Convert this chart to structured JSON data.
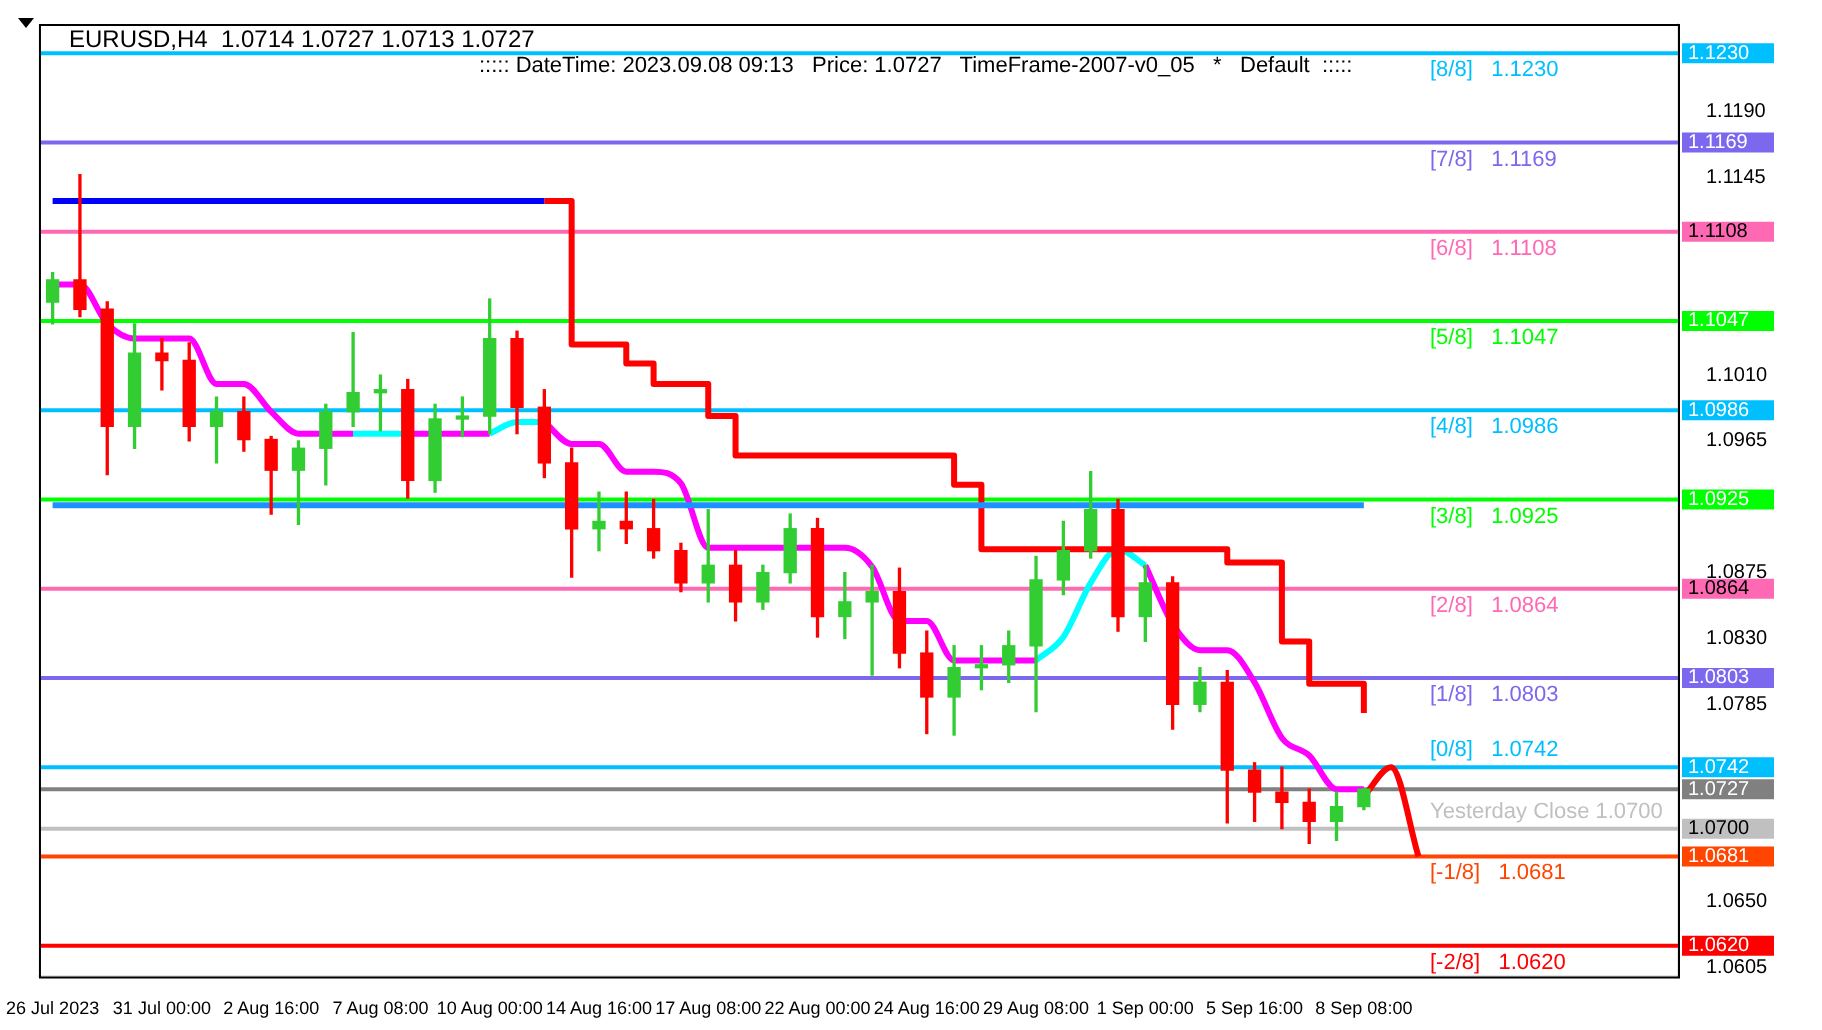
{
  "chart_data": {
    "type": "candlestick",
    "title": "EURUSD,H4  1.0714 1.0727 1.0713 1.0727",
    "subtitle": "::::: DateTime: 2023.09.08 09:13   Price: 1.0727   TimeFrame-2007-v0_05   *   Default  :::::",
    "categories": [
      "26 Jul 2023",
      null,
      null,
      null,
      "31 Jul 00:00",
      null,
      null,
      null,
      "2 Aug 16:00",
      null,
      null,
      null,
      "7 Aug 08:00",
      null,
      null,
      null,
      "10 Aug 00:00",
      null,
      null,
      null,
      "14 Aug 16:00",
      null,
      null,
      null,
      "17 Aug 08:00",
      null,
      null,
      null,
      "22 Aug 00:00",
      null,
      null,
      null,
      "24 Aug 16:00",
      null,
      null,
      null,
      "29 Aug 08:00",
      null,
      null,
      null,
      "1 Sep 00:00",
      null,
      null,
      null,
      "5 Sep 16:00",
      null,
      null,
      null,
      "8 Sep 08:00",
      null,
      null,
      null,
      null,
      null,
      null,
      null,
      null,
      null,
      null,
      null
    ],
    "ohlc": [
      [
        1.106,
        1.108,
        1.1045,
        1.1075
      ],
      [
        1.1075,
        1.1147,
        1.105,
        1.1055
      ],
      [
        1.1055,
        1.106,
        1.0942,
        1.0975
      ],
      [
        1.0975,
        1.1045,
        1.096,
        1.1025
      ],
      [
        1.1025,
        1.1035,
        1.1,
        1.102
      ],
      [
        1.102,
        1.1032,
        1.0965,
        1.0975
      ],
      [
        1.0975,
        1.0995,
        1.095,
        1.0985
      ],
      [
        1.0985,
        1.0995,
        1.0958,
        1.0966
      ],
      [
        1.0966,
        1.0968,
        1.0915,
        1.0945
      ],
      [
        1.0945,
        1.0965,
        1.0908,
        1.096
      ],
      [
        1.096,
        1.099,
        1.0935,
        1.0985
      ],
      [
        1.0985,
        1.1039,
        1.0975,
        1.0998
      ],
      [
        1.0998,
        1.101,
        1.0972,
        1.1
      ],
      [
        1.1,
        1.1007,
        1.0926,
        1.0938
      ],
      [
        1.0938,
        1.099,
        1.093,
        1.098
      ],
      [
        1.098,
        1.0995,
        1.0968,
        1.0982
      ],
      [
        1.0982,
        1.1062,
        1.097,
        1.1035
      ],
      [
        1.1035,
        1.104,
        1.097,
        1.0988
      ],
      [
        1.0988,
        1.1,
        1.094,
        1.095
      ],
      [
        1.095,
        1.096,
        1.0872,
        1.0905
      ],
      [
        1.0905,
        1.093,
        1.089,
        1.091
      ],
      [
        1.091,
        1.093,
        1.0895,
        1.0905
      ],
      [
        1.0905,
        1.0925,
        1.0885,
        1.089
      ],
      [
        1.089,
        1.0895,
        1.0862,
        1.0868
      ],
      [
        1.0868,
        1.0918,
        1.0855,
        1.088
      ],
      [
        1.088,
        1.089,
        1.0842,
        1.0855
      ],
      [
        1.0855,
        1.088,
        1.085,
        1.0875
      ],
      [
        1.0875,
        1.0915,
        1.0868,
        1.0905
      ],
      [
        1.0905,
        1.0912,
        1.0831,
        1.0845
      ],
      [
        1.0845,
        1.0875,
        1.083,
        1.0855
      ],
      [
        1.0855,
        1.088,
        1.0805,
        1.0862
      ],
      [
        1.0862,
        1.0878,
        1.081,
        1.082
      ],
      [
        1.082,
        1.0835,
        1.0765,
        1.079
      ],
      [
        1.079,
        1.0825,
        1.0764,
        1.081
      ],
      [
        1.081,
        1.0825,
        1.0795,
        1.0812
      ],
      [
        1.0812,
        1.0835,
        1.08,
        1.0825
      ],
      [
        1.0825,
        1.0886,
        1.078,
        1.087
      ],
      [
        1.087,
        1.091,
        1.086,
        1.089
      ],
      [
        1.089,
        1.0944,
        1.0885,
        1.0918
      ],
      [
        1.0918,
        1.0925,
        1.0835,
        1.0845
      ],
      [
        1.0845,
        1.088,
        1.0828,
        1.0868
      ],
      [
        1.0868,
        1.0872,
        1.0768,
        1.0785
      ],
      [
        1.0785,
        1.081,
        1.078,
        1.08
      ],
      [
        1.08,
        1.0808,
        1.0704,
        1.074
      ],
      [
        1.074,
        1.0745,
        1.0705,
        1.0725
      ],
      [
        1.0725,
        1.0742,
        1.07,
        1.0718
      ],
      [
        1.0718,
        1.0727,
        1.069,
        1.0705
      ],
      [
        1.0705,
        1.0725,
        1.0692,
        1.0715
      ],
      [
        1.0715,
        1.0727,
        1.0713,
        1.0727
      ],
      null,
      null,
      null,
      null,
      null,
      null,
      null,
      null,
      null,
      null,
      null
    ],
    "colors": [
      "#32cd32",
      "#ff0000",
      "#ff0000",
      "#32cd32",
      "#ff0000",
      "#ff0000",
      "#32cd32",
      "#ff0000",
      "#ff0000",
      "#32cd32",
      "#32cd32",
      "#32cd32",
      "#32cd32",
      "#ff0000",
      "#32cd32",
      "#32cd32",
      "#32cd32",
      "#ff0000",
      "#ff0000",
      "#ff0000",
      "#32cd32",
      "#ff0000",
      "#ff0000",
      "#ff0000",
      "#32cd32",
      "#ff0000",
      "#32cd32",
      "#32cd32",
      "#ff0000",
      "#32cd32",
      "#32cd32",
      "#ff0000",
      "#ff0000",
      "#32cd32",
      "#32cd32",
      "#32cd32",
      "#32cd32",
      "#32cd32",
      "#32cd32",
      "#ff0000",
      "#32cd32",
      "#ff0000",
      "#32cd32",
      "#ff0000",
      "#ff0000",
      "#ff0000",
      "#ff0000",
      "#32cd32",
      "#32cd32",
      null,
      null,
      null,
      null,
      null,
      null,
      null,
      null,
      null,
      null,
      null
    ],
    "series": [
      {
        "type": "line",
        "color": "#0000ff",
        "values": [
          1.1129,
          1.1129,
          1.1129,
          1.1129,
          1.1129,
          1.1129,
          1.1129,
          1.1129,
          1.1129,
          1.1129,
          1.1129,
          1.1129,
          1.1129,
          1.1129,
          1.1129,
          1.1129,
          1.1129,
          1.1129,
          1.1129,
          null,
          null,
          null,
          null,
          null,
          null,
          null,
          null,
          null,
          null,
          null,
          null,
          null,
          null,
          null,
          null,
          null,
          null,
          null,
          null,
          null,
          null,
          null,
          null,
          null,
          null,
          null,
          null,
          null,
          null,
          null,
          null,
          null,
          null,
          null,
          null,
          null,
          null,
          null,
          null,
          null
        ]
      },
      {
        "type": "line",
        "color": "#1e90ff",
        "values": [
          1.0921,
          1.0921,
          1.0921,
          1.0921,
          1.0921,
          1.0921,
          1.0921,
          1.0921,
          1.0921,
          1.0921,
          1.0921,
          1.0921,
          1.0921,
          1.0921,
          1.0921,
          1.0921,
          1.0921,
          1.0921,
          1.0921,
          1.0921,
          1.0921,
          1.0921,
          1.0921,
          1.0921,
          1.0921,
          1.0921,
          1.0921,
          1.0921,
          1.0921,
          1.0921,
          1.0921,
          1.0921,
          1.0921,
          1.0921,
          1.0921,
          1.0921,
          1.0921,
          1.0921,
          1.0921,
          1.0921,
          1.0921,
          1.0921,
          1.0921,
          1.0921,
          1.0921,
          1.0921,
          1.0921,
          1.0921,
          1.0921,
          null,
          null,
          null,
          null,
          null,
          null,
          null,
          null,
          null,
          null,
          null
        ]
      },
      {
        "type": "step",
        "color": "#ff0000",
        "values": [
          null,
          null,
          null,
          null,
          null,
          null,
          null,
          null,
          null,
          null,
          null,
          null,
          null,
          null,
          null,
          null,
          null,
          null,
          1.1129,
          1.1031,
          1.1031,
          1.1018,
          1.1004,
          1.1004,
          1.0982,
          1.0955,
          1.0955,
          1.0955,
          1.0955,
          1.0955,
          1.0955,
          1.0955,
          1.0955,
          1.0935,
          1.0891,
          1.0891,
          1.0891,
          1.0891,
          1.0891,
          1.0891,
          1.0891,
          1.0891,
          1.0891,
          1.0882,
          1.0882,
          1.0828,
          1.0799,
          1.0799,
          1.0779,
          null,
          null,
          null,
          null,
          null,
          null,
          null,
          null,
          null,
          null,
          null
        ]
      },
      {
        "type": "line",
        "color": "#ff00ff",
        "values": [
          1.1072,
          1.1072,
          1.1045,
          1.1035,
          1.1035,
          1.1035,
          1.1004,
          1.1004,
          1.0985,
          1.097,
          1.097,
          1.097,
          null,
          1.097,
          1.097,
          1.097,
          1.097,
          null,
          1.0978,
          1.0963,
          1.0963,
          1.0944,
          1.0944,
          1.0936,
          1.0892,
          1.0892,
          1.0892,
          1.0892,
          1.0892,
          1.0892,
          1.0879,
          1.0842,
          1.0842,
          1.0815,
          1.0815,
          1.0815,
          1.0815,
          null,
          null,
          null,
          1.088,
          1.084,
          1.0822,
          1.0822,
          1.08,
          1.0762,
          1.075,
          1.0727,
          1.0727,
          null,
          null,
          null,
          null,
          null,
          null,
          null,
          null,
          null,
          null,
          null
        ]
      },
      {
        "type": "line",
        "color": "#00ffff",
        "values": [
          null,
          null,
          null,
          null,
          null,
          null,
          null,
          null,
          null,
          null,
          null,
          1.097,
          1.097,
          1.097,
          null,
          null,
          1.097,
          1.0978,
          1.0978,
          null,
          null,
          null,
          null,
          null,
          null,
          null,
          null,
          null,
          null,
          null,
          null,
          null,
          null,
          null,
          null,
          null,
          1.0815,
          1.0831,
          1.0868,
          1.0891,
          1.088,
          null,
          null,
          null,
          null,
          null,
          null,
          null,
          null,
          null,
          null,
          null,
          null,
          null,
          null,
          null,
          null,
          null,
          null,
          null
        ]
      },
      {
        "type": "line",
        "color": "#ff0000",
        "values": [
          null,
          null,
          null,
          null,
          null,
          null,
          null,
          null,
          null,
          null,
          null,
          null,
          null,
          null,
          null,
          null,
          null,
          null,
          null,
          null,
          null,
          null,
          null,
          null,
          null,
          null,
          null,
          null,
          null,
          null,
          null,
          null,
          null,
          null,
          null,
          null,
          null,
          null,
          null,
          null,
          null,
          null,
          null,
          null,
          null,
          null,
          null,
          null,
          1.0722,
          1.0742,
          1.0681,
          null,
          null,
          null,
          null,
          null,
          null,
          null,
          null,
          null
        ]
      }
    ],
    "ylim": [
      1.0599,
      1.125
    ],
    "yticks": [
      1.0605,
      {
        "value": 1.065,
        "label": "1.0650"
      },
      1.0785,
      {
        "value": 1.083,
        "label": "1.0830"
      },
      1.0875,
      1.0965,
      {
        "value": 1.101,
        "label": "1.1010"
      },
      1.1145,
      {
        "value": 1.119,
        "label": "1.1190"
      }
    ],
    "y2lim": [
      1.0599,
      1.125
    ],
    "y2ticks": [
      {
        "value": 1.123,
        "label": "1.1230"
      },
      1.1169,
      1.1108,
      1.1047,
      1.0986,
      1.0925,
      1.0864,
      1.0803,
      1.0742,
      1.0727,
      {
        "value": 1.07,
        "label": "1.0700"
      },
      1.0681,
      {
        "value": 1.062,
        "label": "1.0620"
      }
    ],
    "ref_lines": [
      {
        "axis": "y",
        "value": 1.123,
        "label": "[8/8]   1.1230",
        "color": "#00bfff"
      },
      {
        "axis": "y",
        "value": 1.1169,
        "label": "[7/8]   1.1169",
        "color": "#7b68ee"
      },
      {
        "axis": "y",
        "value": 1.1108,
        "label": "[6/8]   1.1108",
        "color": "#ff69b4"
      },
      {
        "axis": "y",
        "value": 1.1047,
        "label": "[5/8]   1.1047",
        "color": "#00ff00"
      },
      {
        "axis": "y",
        "value": 1.0986,
        "label": "[4/8]   1.0986",
        "color": "#00bfff"
      },
      {
        "axis": "y",
        "value": 1.0925,
        "label": "[3/8]   1.0925",
        "color": "#00ff00"
      },
      {
        "axis": "y",
        "value": 1.0864,
        "label": "[2/8]   1.0864",
        "color": "#ff69b4"
      },
      {
        "axis": "y",
        "value": 1.0803,
        "label": "[1/8]   1.0803",
        "color": "#7b68ee"
      },
      {
        "axis": "y",
        "value": 1.0742,
        "label": "[0/8]   1.0742",
        "color": "#00bfff"
      },
      {
        "axis": "y",
        "value": 1.0727,
        "label": null,
        "color": "#808080"
      },
      {
        "axis": "y",
        "value": 1.07,
        "label": "Yesterday Close 1.0700",
        "color": "#c0c0c0"
      },
      {
        "axis": "y",
        "value": 1.0681,
        "label": "[-1/8]   1.0681",
        "color": "#ff4500"
      },
      {
        "axis": "y",
        "value": 1.062,
        "label": "[-2/8]   1.0620",
        "color": "#ff0000"
      }
    ]
  }
}
